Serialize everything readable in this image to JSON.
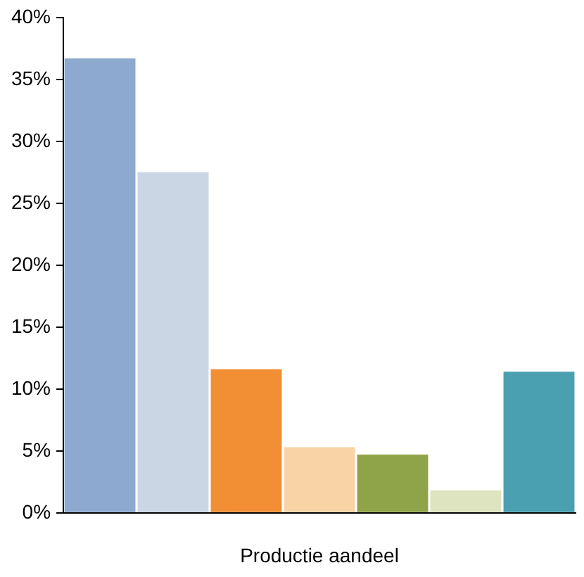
{
  "chart_data": {
    "type": "bar",
    "xlabel": "Productie aandeel",
    "categories": [
      null,
      null,
      null,
      null,
      null,
      null,
      null
    ],
    "values": [
      36.7,
      27.5,
      11.6,
      5.3,
      4.7,
      1.8,
      11.4
    ],
    "colors": [
      "#8ea9cf",
      "#cad6e3",
      "#f28e33",
      "#f9d3a6",
      "#8fa448",
      "#dde4bf",
      "#4aa0b0"
    ],
    "ylim": [
      0,
      40
    ],
    "yticks": [
      {
        "value": 0,
        "label": "0%"
      },
      {
        "value": 5,
        "label": "5%"
      },
      {
        "value": 10,
        "label": "10%"
      },
      {
        "value": 15,
        "label": "15%"
      },
      {
        "value": 20,
        "label": "20%"
      },
      {
        "value": 25,
        "label": "25%"
      },
      {
        "value": 30,
        "label": "30%"
      },
      {
        "value": 35,
        "label": "35%"
      },
      {
        "value": 40,
        "label": "40%"
      }
    ],
    "grid": false,
    "legend": false
  }
}
